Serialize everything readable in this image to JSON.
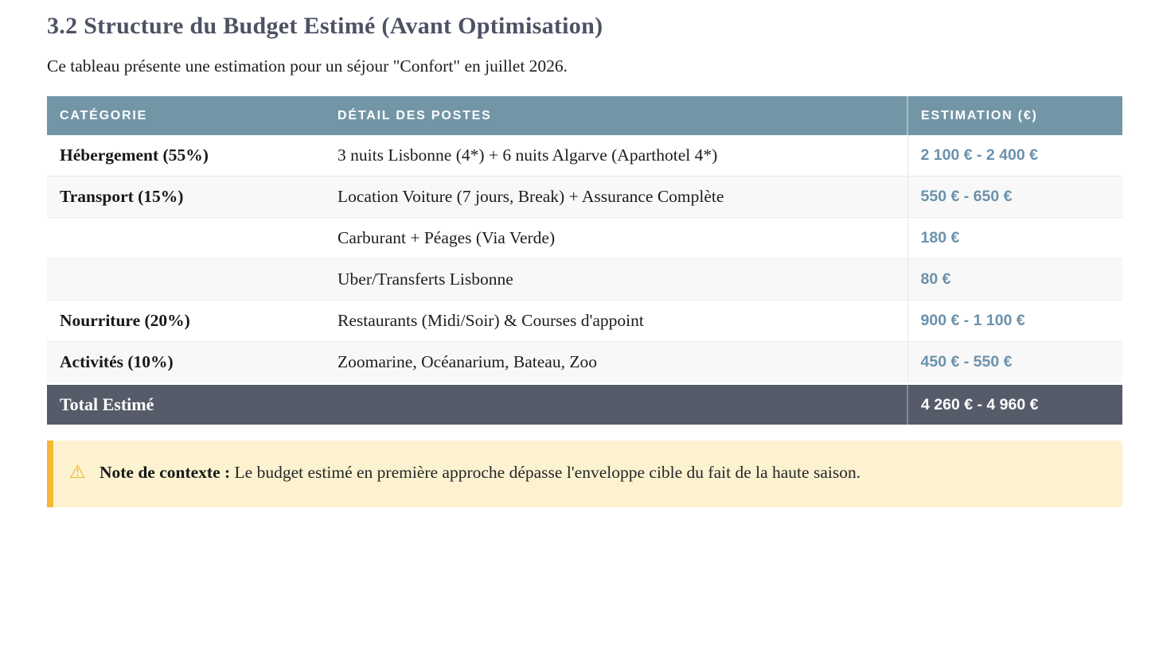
{
  "page": {
    "heading": "3.2 Structure du Budget Estimé (Avant Optimisation)",
    "intro": "Ce tableau présente une estimation pour un séjour \"Confort\" en juillet 2026."
  },
  "table": {
    "columns": [
      "CATÉGORIE",
      "DÉTAIL DES POSTES",
      "ESTIMATION (€)"
    ],
    "rows": [
      {
        "category": "Hébergement (55%)",
        "detail": "3 nuits Lisbonne (4*) + 6 nuits Algarve (Aparthotel 4*)",
        "estimation": "2 100 € - 2 400 €"
      },
      {
        "category": "Transport (15%)",
        "detail": "Location Voiture (7 jours, Break) + Assurance Complète",
        "estimation": "550 € - 650 €"
      },
      {
        "category": "",
        "detail": "Carburant + Péages (Via Verde)",
        "estimation": "180 €"
      },
      {
        "category": "",
        "detail": "Uber/Transferts Lisbonne",
        "estimation": "80 €"
      },
      {
        "category": "Nourriture (20%)",
        "detail": "Restaurants (Midi/Soir) & Courses d'appoint",
        "estimation": "900 € - 1 100 €"
      },
      {
        "category": "Activités (10%)",
        "detail": "Zoomarine, Océanarium, Bateau, Zoo",
        "estimation": "450 € - 550 €"
      }
    ],
    "footer": {
      "label": "Total Estimé",
      "estimation": "4 260 € - 4 960 €"
    }
  },
  "note": {
    "icon": "⚠",
    "label": "Note de contexte :",
    "text": "Le budget estimé en première approche dépasse l'enveloppe cible du fait de la haute saison."
  },
  "colors": {
    "table_header_bg": "#7396a7",
    "table_footer_bg": "#565b69",
    "price_accent": "#6b92ac",
    "note_bg": "#fcf2cf",
    "note_border": "#f5b835",
    "heading_text": "#4d5264"
  }
}
